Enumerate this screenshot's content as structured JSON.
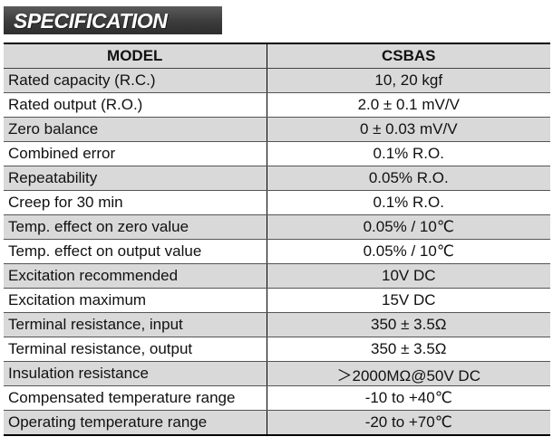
{
  "banner": {
    "title": "SPECIFICATION"
  },
  "table": {
    "header": {
      "model_label": "MODEL",
      "model_value": "CSBAS"
    },
    "rows": [
      {
        "item": "Rated capacity (R.C.)",
        "value": "10, 20 kgf"
      },
      {
        "item": "Rated output (R.O.)",
        "value": "2.0 ± 0.1 mV/V"
      },
      {
        "item": "Zero balance",
        "value": "0 ± 0.03 mV/V"
      },
      {
        "item": "Combined error",
        "value": "0.1% R.O."
      },
      {
        "item": "Repeatability",
        "value": "0.05% R.O."
      },
      {
        "item": "Creep for 30 min",
        "value": "0.1% R.O."
      },
      {
        "item": "Temp. effect on zero value",
        "value": "0.05% / 10℃"
      },
      {
        "item": "Temp. effect on output value",
        "value": "0.05% / 10℃"
      },
      {
        "item": "Excitation recommended",
        "value": "10V DC"
      },
      {
        "item": "Excitation maximum",
        "value": "15V DC"
      },
      {
        "item": "Terminal resistance, input",
        "value": "350 ± 3.5Ω"
      },
      {
        "item": "Terminal resistance, output",
        "value": "350 ± 3.5Ω"
      },
      {
        "item": "Insulation resistance",
        "value": "＞2000MΩ@50V DC"
      },
      {
        "item": "Compensated temperature range",
        "value": "-10 to +40℃"
      },
      {
        "item": "Operating temperature range",
        "value": "-20 to +70℃"
      }
    ]
  },
  "colors": {
    "row_shade": "#d9d9d9",
    "banner_bg": "#3c3c3c",
    "banner_text": "#ffffff"
  }
}
